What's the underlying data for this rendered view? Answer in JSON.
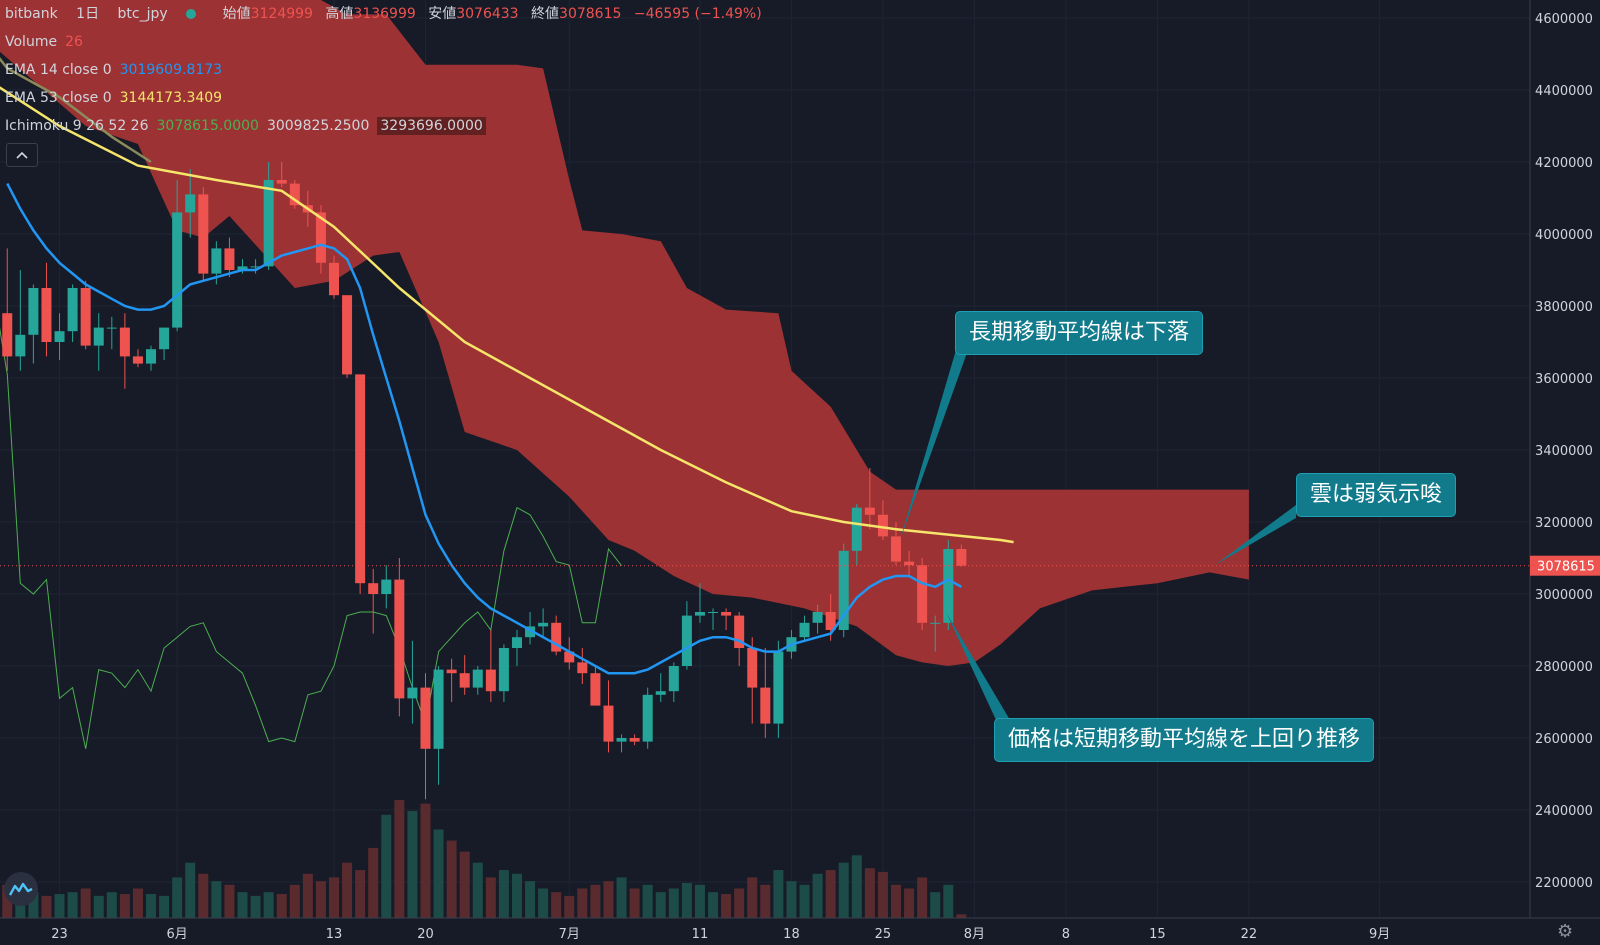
{
  "header": {
    "symbol_exchange": "bitbank",
    "interval": "1日",
    "pair": "btc_jpy",
    "ohlc": [
      {
        "label": "始値",
        "value": "3124999"
      },
      {
        "label": "高値",
        "value": "3136999"
      },
      {
        "label": "安値",
        "value": "3076433"
      },
      {
        "label": "終値",
        "value": "3078615"
      }
    ],
    "change": "−46595 (−1.49%)"
  },
  "indicators": {
    "volume": {
      "label": "Volume",
      "value": "26"
    },
    "ema14": {
      "label": "EMA 14 close 0",
      "value": "3019609.8173"
    },
    "ema53": {
      "label": "EMA 53 close 0",
      "value": "3144173.3409"
    },
    "ichimoku": {
      "label": "Ichimoku 9 26 52 26",
      "v1": "3078615.0000",
      "v2": "3009825.2500",
      "v3": "3293696.0000"
    }
  },
  "collapse_icon": "chevron-up-icon",
  "annotations": {
    "long_ma": "長期移動平均線は下落",
    "cloud": "雲は弱気示唆",
    "price": "価格は短期移動平均線を上回り推移"
  },
  "colors": {
    "background": "#161b27",
    "up": "#26a69a",
    "down": "#ef5350",
    "cloud": "#a33434",
    "ema14": "#2196f3",
    "ema53": "#f5e56b",
    "lagging": "#4caf50",
    "callout": "#117a8b"
  },
  "chart_data": {
    "type": "candlestick",
    "y_ticks": [
      "4600000",
      "4400000",
      "4200000",
      "4000000",
      "3800000",
      "3600000",
      "3400000",
      "3200000",
      "3000000",
      "2800000",
      "2600000",
      "2400000",
      "2200000"
    ],
    "x_ticks": [
      {
        "day": 0,
        "label": "23"
      },
      {
        "day": 9,
        "label": "6月"
      },
      {
        "day": 21,
        "label": "13"
      },
      {
        "day": 28,
        "label": "20"
      },
      {
        "day": 39,
        "label": "7月"
      },
      {
        "day": 49,
        "label": "11"
      },
      {
        "day": 56,
        "label": "18"
      },
      {
        "day": 63,
        "label": "25"
      },
      {
        "day": 70,
        "label": "8月"
      },
      {
        "day": 77,
        "label": "8"
      },
      {
        "day": 84,
        "label": "15"
      },
      {
        "day": 91,
        "label": "22"
      },
      {
        "day": 101,
        "label": "9月"
      }
    ],
    "last_price": "3078615",
    "ylim": [
      2100000,
      4650000
    ],
    "candles": [
      [
        3780000,
        3960000,
        3620000,
        3660000
      ],
      [
        3660000,
        3900000,
        3620000,
        3720000
      ],
      [
        3720000,
        3860000,
        3640000,
        3850000
      ],
      [
        3850000,
        3920000,
        3660000,
        3700000
      ],
      [
        3700000,
        3780000,
        3650000,
        3730000
      ],
      [
        3730000,
        3860000,
        3700000,
        3850000
      ],
      [
        3850000,
        3870000,
        3680000,
        3690000
      ],
      [
        3690000,
        3780000,
        3620000,
        3740000
      ],
      [
        3740000,
        3770000,
        3680000,
        3740000
      ],
      [
        3740000,
        3780000,
        3570000,
        3660000
      ],
      [
        3660000,
        3680000,
        3630000,
        3640000
      ],
      [
        3640000,
        3690000,
        3620000,
        3680000
      ],
      [
        3680000,
        3740000,
        3650000,
        3740000
      ],
      [
        3740000,
        4150000,
        3730000,
        4060000
      ],
      [
        4060000,
        4180000,
        3990000,
        4110000
      ],
      [
        4110000,
        4130000,
        3870000,
        3890000
      ],
      [
        3890000,
        3980000,
        3860000,
        3960000
      ],
      [
        3960000,
        3990000,
        3880000,
        3900000
      ],
      [
        3900000,
        3930000,
        3890000,
        3910000
      ],
      [
        3910000,
        3930000,
        3890000,
        3910000
      ],
      [
        3910000,
        4200000,
        3900000,
        4150000
      ],
      [
        4150000,
        4200000,
        4130000,
        4140000
      ],
      [
        4140000,
        4150000,
        4070000,
        4080000
      ],
      [
        4080000,
        4120000,
        4020000,
        4060000
      ],
      [
        4060000,
        4080000,
        3890000,
        3920000
      ],
      [
        3920000,
        3940000,
        3820000,
        3830000
      ],
      [
        3830000,
        3830000,
        3600000,
        3610000
      ],
      [
        3610000,
        3610000,
        3000000,
        3030000
      ],
      [
        3030000,
        3070000,
        2890000,
        3000000
      ],
      [
        3000000,
        3080000,
        2960000,
        3040000
      ],
      [
        3040000,
        3100000,
        2660000,
        2710000
      ],
      [
        2710000,
        2870000,
        2640000,
        2740000
      ],
      [
        2740000,
        2780000,
        2430000,
        2570000
      ],
      [
        2570000,
        2800000,
        2470000,
        2790000
      ],
      [
        2790000,
        2820000,
        2700000,
        2780000
      ],
      [
        2780000,
        2830000,
        2720000,
        2740000
      ],
      [
        2740000,
        2800000,
        2720000,
        2790000
      ],
      [
        2790000,
        2900000,
        2700000,
        2730000
      ],
      [
        2730000,
        2860000,
        2700000,
        2850000
      ],
      [
        2850000,
        2900000,
        2800000,
        2880000
      ],
      [
        2880000,
        2950000,
        2860000,
        2910000
      ],
      [
        2910000,
        2960000,
        2880000,
        2920000
      ],
      [
        2920000,
        2940000,
        2830000,
        2840000
      ],
      [
        2840000,
        2880000,
        2790000,
        2810000
      ],
      [
        2810000,
        2850000,
        2750000,
        2780000
      ],
      [
        2780000,
        2800000,
        2700000,
        2690000
      ],
      [
        2690000,
        2760000,
        2560000,
        2590000
      ],
      [
        2590000,
        2610000,
        2560000,
        2600000
      ],
      [
        2600000,
        2610000,
        2580000,
        2590000
      ],
      [
        2590000,
        2740000,
        2570000,
        2720000
      ],
      [
        2720000,
        2780000,
        2700000,
        2730000
      ],
      [
        2730000,
        2810000,
        2700000,
        2800000
      ],
      [
        2800000,
        2980000,
        2790000,
        2940000
      ],
      [
        2940000,
        3030000,
        2920000,
        2950000
      ],
      [
        2950000,
        2960000,
        2900000,
        2950000
      ],
      [
        2950000,
        2960000,
        2900000,
        2940000
      ],
      [
        2940000,
        2950000,
        2800000,
        2850000
      ],
      [
        2850000,
        2880000,
        2640000,
        2740000
      ],
      [
        2740000,
        2850000,
        2600000,
        2640000
      ],
      [
        2640000,
        2870000,
        2600000,
        2840000
      ],
      [
        2840000,
        2900000,
        2820000,
        2880000
      ],
      [
        2880000,
        2940000,
        2870000,
        2920000
      ],
      [
        2920000,
        2970000,
        2890000,
        2950000
      ],
      [
        2950000,
        3000000,
        2870000,
        2900000
      ],
      [
        2900000,
        3140000,
        2880000,
        3120000
      ],
      [
        3120000,
        3250000,
        3080000,
        3240000
      ],
      [
        3240000,
        3350000,
        3180000,
        3220000
      ],
      [
        3220000,
        3260000,
        3150000,
        3160000
      ],
      [
        3160000,
        3200000,
        3080000,
        3090000
      ],
      [
        3090000,
        3120000,
        3050000,
        3080000
      ],
      [
        3080000,
        3100000,
        2900000,
        2920000
      ],
      [
        2920000,
        2940000,
        2840000,
        2920000
      ],
      [
        2920000,
        3150000,
        2900000,
        3125000
      ],
      [
        3124999,
        3136999,
        3076433,
        3078615
      ]
    ],
    "volume_max": 3200,
    "volumes": [
      900,
      800,
      700,
      600,
      650,
      700,
      800,
      600,
      700,
      650,
      800,
      650,
      600,
      1100,
      1500,
      1200,
      1000,
      900,
      700,
      600,
      700,
      650,
      900,
      1200,
      1000,
      1100,
      1500,
      1300,
      1900,
      2800,
      3200,
      2900,
      3100,
      2400,
      2100,
      1800,
      1500,
      1100,
      1300,
      1200,
      1000,
      800,
      700,
      600,
      800,
      900,
      1000,
      1100,
      800,
      900,
      700,
      800,
      950,
      900,
      700,
      650,
      800,
      1100,
      900,
      1300,
      1000,
      900,
      1200,
      1300,
      1500,
      1700,
      1350,
      1250,
      900,
      800,
      1100,
      700,
      900,
      100
    ],
    "ema14": [
      4140000,
      4070000,
      4010000,
      3960000,
      3920000,
      3890000,
      3860000,
      3840000,
      3820000,
      3800000,
      3790000,
      3790000,
      3800000,
      3830000,
      3860000,
      3870000,
      3880000,
      3890000,
      3900000,
      3900000,
      3920000,
      3940000,
      3950000,
      3960000,
      3970000,
      3960000,
      3930000,
      3850000,
      3720000,
      3600000,
      3480000,
      3350000,
      3220000,
      3140000,
      3080000,
      3030000,
      2990000,
      2960000,
      2940000,
      2920000,
      2900000,
      2880000,
      2860000,
      2840000,
      2820000,
      2800000,
      2780000,
      2780000,
      2780000,
      2790000,
      2810000,
      2830000,
      2850000,
      2870000,
      2880000,
      2880000,
      2870000,
      2850000,
      2840000,
      2840000,
      2860000,
      2870000,
      2880000,
      2890000,
      2940000,
      2990000,
      3020000,
      3040000,
      3050000,
      3050000,
      3030000,
      3020000,
      3040000,
      3019609
    ]
  }
}
